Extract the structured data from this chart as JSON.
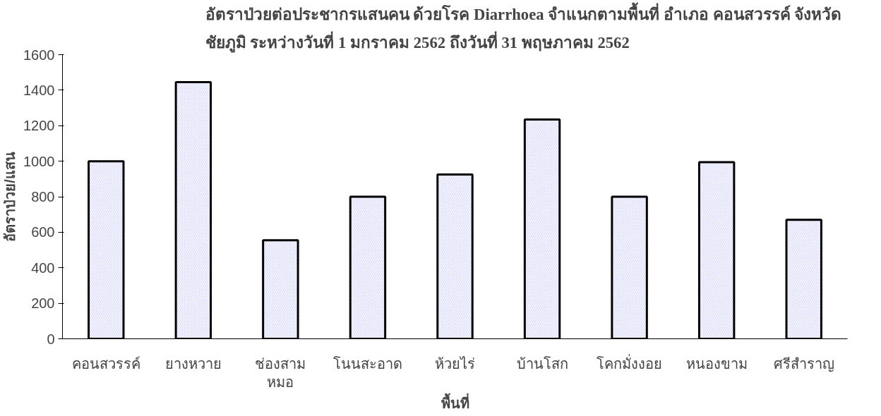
{
  "chart_data": {
    "type": "bar",
    "title": "อัตราป่วยต่อประชากรแสนคน ด้วยโรค Diarrhoea  จำแนกตามพื้นที่    อำเภอ  คอนสวรรค์ จังหวัด\nชัยภูมิ  ระหว่างวันที่  1 มกราคม 2562  ถึงวันที่  31 พฤษภาคม 2562",
    "xlabel": "พื้นที่",
    "ylabel": "อัตราป่วย/แสน",
    "categories": [
      "คอนสวรรค์",
      "ยางหวาย",
      "ช่องสาม\nหมอ",
      "โนนสะอาด",
      "ห้วยไร่",
      "บ้านโสก",
      "โคกมั่งงอย",
      "หนองขาม",
      "ศรีสำราญ"
    ],
    "values": [
      1000,
      1445,
      555,
      800,
      925,
      1235,
      800,
      995,
      670
    ],
    "color": "#9999ff",
    "ylim": [
      0,
      1600
    ],
    "yticks": [
      0,
      200,
      400,
      600,
      800,
      1000,
      1200,
      1400,
      1600
    ],
    "grid": false
  }
}
